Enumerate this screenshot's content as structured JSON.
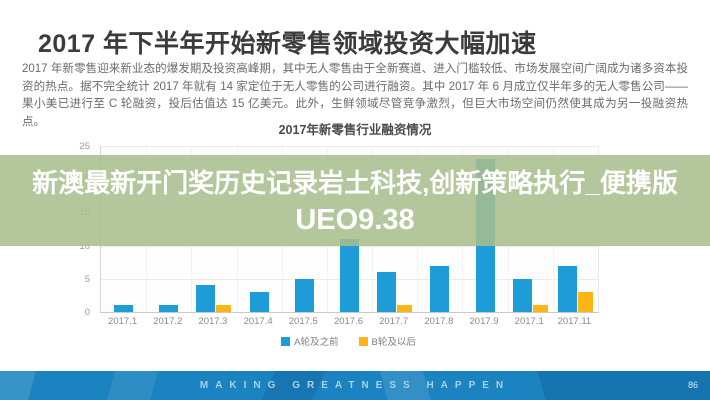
{
  "slide": {
    "title": "2017 年下半年开始新零售领域投资大幅加速",
    "body_text": "2017 年新零售迎来新业态的爆发期及投资高峰期，其中无人零售由于全新赛道、进入门槛较低、市场发展空间广阔成为诸多资本投资的热点。据不完全统计 2017 年就有 14 家定位于无人零售的公司进行融资。其中 2017 年 6 月成立仅半年多的无人零售公司——果小美已进行至 C 轮融资，投后估值达 15 亿美元。此外，生鲜领域尽管竞争激烈，但巨大市场空间仍然使其成为另一投融资热点。",
    "page_number": "86"
  },
  "overlay_banner": {
    "line1": "新澳最新开门奖历史记录岩土科技,创新策略执行_便携版",
    "line2": "UEO9.38",
    "background_color": "#a9bf8d",
    "background_opacity": 0.87,
    "text_color": "#ffffff"
  },
  "footer": {
    "slogan": "MAKING GREATNESS HAPPEN",
    "background_color": "#1b83bf",
    "text_color": "#a5d2e9"
  },
  "chart_data": {
    "type": "bar",
    "title": "2017年新零售行业融资情况",
    "categories": [
      "2017.1",
      "2017.2",
      "2017.3",
      "2017.4",
      "2017.5",
      "2017.6",
      "2017.7",
      "2017.8",
      "2017.9",
      "2017.1",
      "2017.11"
    ],
    "series": [
      {
        "name": "A轮及之前",
        "color": "#1e9cd7",
        "values": [
          1,
          1,
          4,
          3,
          5,
          11,
          6,
          7,
          23,
          5,
          7
        ]
      },
      {
        "name": "B轮及以后",
        "color": "#fcb514",
        "values": [
          0,
          0,
          1,
          0,
          0,
          0,
          1,
          0,
          0,
          1,
          3
        ]
      }
    ],
    "xlabel": "",
    "ylabel": "",
    "ylim": [
      0,
      25
    ],
    "yticks": [
      0,
      5,
      10,
      15,
      20,
      25
    ],
    "grid": true,
    "legend_position": "bottom"
  }
}
